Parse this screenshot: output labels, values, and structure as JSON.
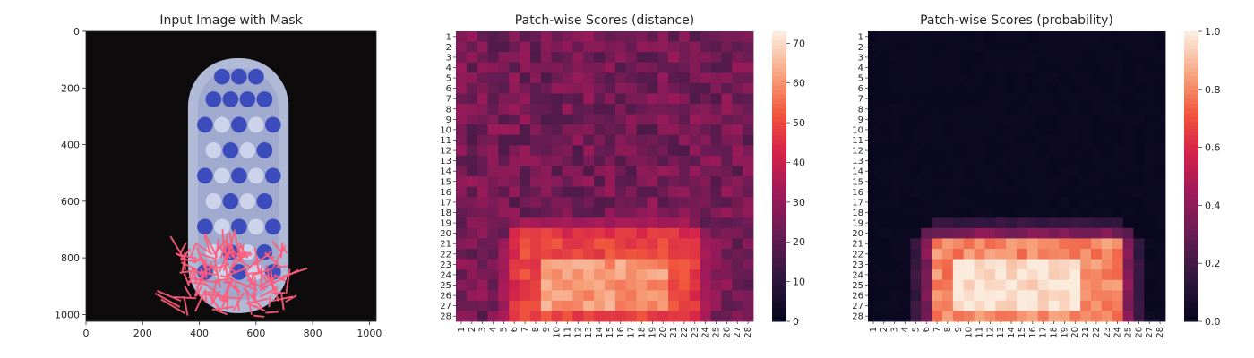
{
  "chart_data": [
    {
      "type": "image",
      "title": "Input Image with Mask",
      "x_ticks": [
        "0",
        "200",
        "400",
        "600",
        "800",
        "1000"
      ],
      "y_ticks": [
        "0",
        "200",
        "400",
        "600",
        "800",
        "1000"
      ],
      "xlim": [
        0,
        1024
      ],
      "ylim": [
        1024,
        0
      ],
      "background_color": "#0d0b0c",
      "mask_color": "#ff5c7a",
      "object_color": "#b9c3e0",
      "bristle_color": "#2a3cb8"
    },
    {
      "type": "heatmap",
      "title": "Patch-wise Scores (distance)",
      "x_tick_labels": [
        "1",
        "2",
        "3",
        "4",
        "5",
        "6",
        "7",
        "8",
        "9",
        "10",
        "11",
        "12",
        "13",
        "14",
        "15",
        "16",
        "17",
        "18",
        "19",
        "20",
        "21",
        "22",
        "23",
        "24",
        "25",
        "26",
        "27",
        "28"
      ],
      "y_tick_labels": [
        "1",
        "2",
        "3",
        "4",
        "5",
        "6",
        "7",
        "8",
        "9",
        "10",
        "11",
        "12",
        "13",
        "14",
        "15",
        "16",
        "17",
        "18",
        "19",
        "20",
        "21",
        "22",
        "23",
        "24",
        "25",
        "26",
        "27",
        "28"
      ],
      "colorbar_ticks": [
        "0",
        "10",
        "20",
        "30",
        "40",
        "50",
        "60",
        "70"
      ],
      "vmin": 0,
      "vmax": 73,
      "colormap": "rocket",
      "grid_rows": 28,
      "grid_cols": 28,
      "background_level": 25,
      "hot_region": {
        "rows": [
          21,
          28
        ],
        "cols": [
          7,
          22
        ],
        "level": 60
      }
    },
    {
      "type": "heatmap",
      "title": "Patch-wise Scores (probability)",
      "x_tick_labels": [
        "1",
        "2",
        "3",
        "4",
        "5",
        "6",
        "7",
        "8",
        "9",
        "10",
        "11",
        "12",
        "13",
        "14",
        "15",
        "16",
        "17",
        "18",
        "19",
        "20",
        "21",
        "22",
        "23",
        "24",
        "25",
        "26",
        "27",
        "28"
      ],
      "y_tick_labels": [
        "1",
        "2",
        "3",
        "4",
        "5",
        "6",
        "7",
        "8",
        "9",
        "10",
        "11",
        "12",
        "13",
        "14",
        "15",
        "16",
        "17",
        "18",
        "19",
        "20",
        "21",
        "22",
        "23",
        "24",
        "25",
        "26",
        "27",
        "28"
      ],
      "colorbar_ticks": [
        "0.0",
        "0.2",
        "0.4",
        "0.6",
        "0.8",
        "1.0"
      ],
      "vmin": 0,
      "vmax": 1,
      "colormap": "rocket",
      "grid_rows": 28,
      "grid_cols": 28,
      "background_level": 0.03,
      "hot_region": {
        "rows": [
          21,
          28
        ],
        "cols": [
          7,
          24
        ],
        "level": 0.97
      }
    }
  ]
}
